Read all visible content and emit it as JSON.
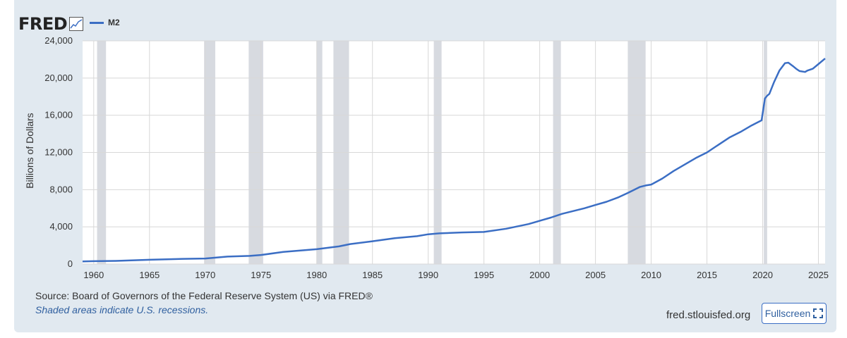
{
  "brand": {
    "logo_text": "FRED",
    "logo_icon": "line-chart-icon"
  },
  "legend": {
    "series_label": "M2",
    "color": "#3b6ec4"
  },
  "footer": {
    "source": "Source: Board of Governors of the Federal Reserve System (US) via FRED®",
    "note": "Shaded areas indicate U.S. recessions.",
    "site": "fred.stlouisfed.org",
    "fullscreen_label": "Fullscreen",
    "fullscreen_icon": "expand-corners-icon"
  },
  "chart_data": {
    "type": "line",
    "title": "",
    "xlabel": "",
    "ylabel": "Billions of Dollars",
    "xlim": [
      1959.0,
      2025.6
    ],
    "ylim": [
      0,
      24000
    ],
    "grid": true,
    "line_color": "#3b6ec4",
    "recession_color": "#c9ced6",
    "yticks": [
      0,
      4000,
      8000,
      12000,
      16000,
      20000,
      24000
    ],
    "ytick_labels": [
      "0",
      "4,000",
      "8,000",
      "12,000",
      "16,000",
      "20,000",
      "24,000"
    ],
    "xticks": [
      1960,
      1965,
      1970,
      1975,
      1980,
      1985,
      1990,
      1995,
      2000,
      2005,
      2010,
      2015,
      2020,
      2025
    ],
    "xtick_labels": [
      "1960",
      "1965",
      "1970",
      "1975",
      "1980",
      "1985",
      "1990",
      "1995",
      "2000",
      "2005",
      "2010",
      "2015",
      "2020",
      "2025"
    ],
    "recessions": [
      [
        1960.3,
        1961.1
      ],
      [
        1969.9,
        1970.9
      ],
      [
        1973.9,
        1975.2
      ],
      [
        1980.0,
        1980.5
      ],
      [
        1981.5,
        1982.9
      ],
      [
        1990.5,
        1991.2
      ],
      [
        2001.2,
        2001.9
      ],
      [
        2007.9,
        2009.5
      ],
      [
        2020.1,
        2020.4
      ]
    ],
    "series": [
      {
        "name": "M2",
        "x": [
          1959.0,
          1960,
          1962,
          1965,
          1968,
          1970,
          1972,
          1974,
          1975,
          1977,
          1980,
          1982,
          1983,
          1985,
          1987,
          1989,
          1990,
          1991,
          1993,
          1995,
          1997,
          1999,
          2000,
          2001,
          2002,
          2004,
          2005,
          2006,
          2007,
          2008,
          2009,
          2009.5,
          2010,
          2011,
          2012,
          2013,
          2014,
          2015,
          2016,
          2017,
          2018,
          2019,
          2019.9,
          2020.2,
          2020.4,
          2020.6,
          2021,
          2021.5,
          2022.0,
          2022.3,
          2022.7,
          2023.0,
          2023.3,
          2023.8,
          2024,
          2024.5,
          2025,
          2025.6
        ],
        "values": [
          290,
          310,
          340,
          460,
          560,
          600,
          800,
          880,
          980,
          1300,
          1600,
          1900,
          2150,
          2450,
          2780,
          3000,
          3200,
          3300,
          3400,
          3450,
          3800,
          4300,
          4650,
          5000,
          5400,
          6000,
          6350,
          6700,
          7150,
          7700,
          8300,
          8450,
          8550,
          9200,
          10000,
          10700,
          11400,
          12000,
          12800,
          13600,
          14200,
          14900,
          15450,
          17800,
          18100,
          18300,
          19500,
          20800,
          21600,
          21650,
          21300,
          21000,
          20750,
          20650,
          20800,
          21000,
          21500,
          22100
        ]
      }
    ]
  }
}
